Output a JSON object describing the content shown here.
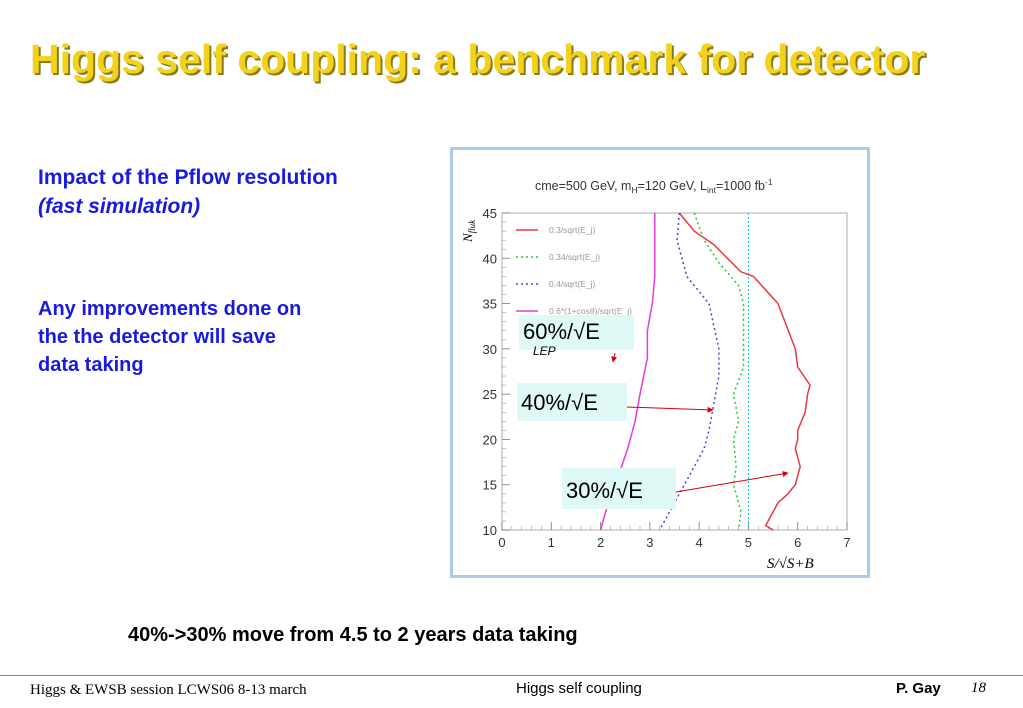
{
  "slide": {
    "title": "Higgs self coupling: a benchmark for detector",
    "subtitle_line1": "Impact of the Pflow resolution",
    "subtitle_line2": "(fast simulation)",
    "note_lines": [
      "Any improvements done on",
      "the the detector  will save",
      "data taking"
    ],
    "bottom_note": "40%->30% move from 4.5 to 2 years data taking",
    "footer_left": "Higgs & EWSB session LCWS06 8-13 march",
    "footer_center": "Higgs self coupling",
    "footer_author": "P.  Gay",
    "page_number": "18"
  },
  "chart_data": {
    "type": "line",
    "title_parts": {
      "a": "cme=500 GeV, m",
      "a_sub": "H",
      "b": "=120 GeV, L",
      "b_sub": "int",
      "c": "=1000 fb",
      "c_sup": "-1"
    },
    "ylabel": "N",
    "ylabel_sub": "fluk",
    "xlabel": "S/√S+B",
    "xlim": [
      0,
      7
    ],
    "ylim": [
      10,
      45
    ],
    "x_ticks": [
      "0",
      "1",
      "2",
      "3",
      "4",
      "5",
      "6",
      "7"
    ],
    "y_ticks": [
      "10",
      "15",
      "20",
      "25",
      "30",
      "35",
      "40",
      "45"
    ],
    "vertical_line_x": 5.0,
    "series": [
      {
        "name": "0.3/sqrt(E_j)",
        "color": "#e8393a",
        "dash": "",
        "points": [
          [
            3.6,
            45
          ],
          [
            3.9,
            43
          ],
          [
            4.3,
            41.5
          ],
          [
            4.85,
            38.5
          ],
          [
            5.1,
            38
          ],
          [
            5.6,
            35
          ],
          [
            5.95,
            30
          ],
          [
            6.0,
            28
          ],
          [
            6.25,
            26
          ],
          [
            6.2,
            25
          ],
          [
            6.15,
            23
          ],
          [
            6.0,
            21
          ],
          [
            6.0,
            20
          ],
          [
            5.95,
            19
          ],
          [
            6.05,
            17
          ],
          [
            5.95,
            15
          ],
          [
            5.8,
            14
          ],
          [
            5.6,
            13
          ],
          [
            5.5,
            12
          ],
          [
            5.35,
            10.5
          ],
          [
            5.5,
            10
          ]
        ]
      },
      {
        "name": "0.34/sqrt(E_j)",
        "color": "#33c133",
        "dash": "2 3",
        "points": [
          [
            3.9,
            45
          ],
          [
            4.1,
            42
          ],
          [
            4.4,
            39.5
          ],
          [
            4.8,
            37
          ],
          [
            4.9,
            35
          ],
          [
            4.9,
            28
          ],
          [
            4.7,
            25
          ],
          [
            4.8,
            22
          ],
          [
            4.7,
            20
          ],
          [
            4.75,
            17
          ],
          [
            4.7,
            15
          ],
          [
            4.85,
            12
          ],
          [
            4.8,
            10
          ]
        ]
      },
      {
        "name": "0.4/sqrt(E_j)",
        "color": "#4646d6",
        "dash": "2 3",
        "points": [
          [
            3.6,
            45
          ],
          [
            3.55,
            42
          ],
          [
            3.75,
            38
          ],
          [
            4.2,
            35
          ],
          [
            4.4,
            30
          ],
          [
            4.4,
            27
          ],
          [
            4.3,
            24
          ],
          [
            4.2,
            21
          ],
          [
            4.1,
            19
          ],
          [
            3.8,
            16
          ],
          [
            3.6,
            14
          ],
          [
            3.4,
            12
          ],
          [
            3.2,
            10
          ]
        ]
      },
      {
        "name": "0.6*(1+cosθ)/sqrt(E_j)",
        "color": "#e33ce3",
        "dash": "",
        "points": [
          [
            3.1,
            45
          ],
          [
            3.1,
            38
          ],
          [
            3.05,
            35
          ],
          [
            2.95,
            32
          ],
          [
            2.95,
            29
          ],
          [
            2.8,
            25
          ],
          [
            2.7,
            22
          ],
          [
            2.55,
            19
          ],
          [
            2.3,
            15
          ],
          [
            2.1,
            12
          ],
          [
            2.0,
            10
          ]
        ]
      }
    ],
    "annotations": [
      {
        "label": "60%/√E",
        "sub": "LEP"
      },
      {
        "label": "40%/√E"
      },
      {
        "label": "30%/√E"
      }
    ]
  }
}
